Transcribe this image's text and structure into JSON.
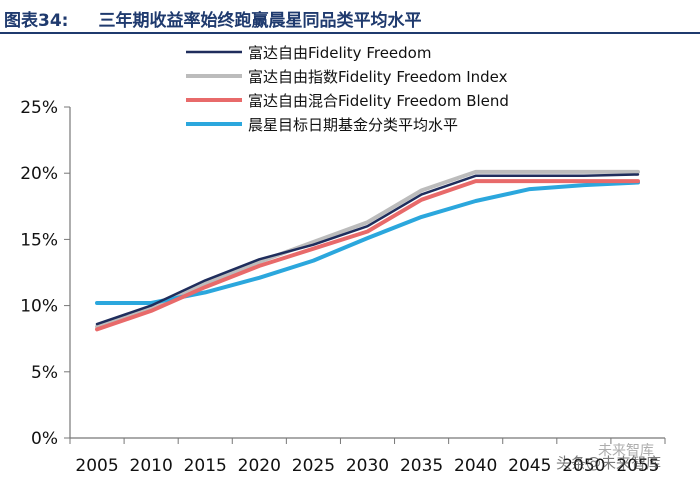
{
  "header": {
    "figure_number": "图表34:",
    "figure_title": "三年期收益率始终跑赢晨星同品类平均水平"
  },
  "watermark": {
    "text": "头条@未来智库",
    "logo_text": "未来智库"
  },
  "chart_data": {
    "type": "line",
    "title": "三年期收益率始终跑赢晨星同品类平均水平",
    "xlabel": "",
    "ylabel": "",
    "categories": [
      "2005",
      "2010",
      "2015",
      "2020",
      "2025",
      "2030",
      "2035",
      "2040",
      "2045",
      "2050",
      "2055"
    ],
    "x_tick_labels": [
      "2005",
      "2010",
      "2015",
      "2020",
      "2025",
      "2030",
      "2035",
      "2040",
      "2045",
      "2050",
      "2055"
    ],
    "y_tick_labels": [
      "0%",
      "5%",
      "10%",
      "15%",
      "20%",
      "25%"
    ],
    "ylim": [
      0,
      25
    ],
    "y_ticks": [
      0,
      5,
      10,
      15,
      20,
      25
    ],
    "grid": false,
    "legend_position": "top-center",
    "series": [
      {
        "name": "富达自由Fidelity Freedom",
        "color": "#1f2d5c",
        "values": [
          8.6,
          10.0,
          11.9,
          13.5,
          14.6,
          16.0,
          18.4,
          19.8,
          19.8,
          19.8,
          19.9
        ]
      },
      {
        "name": "富达自由指数Fidelity Freedom Index",
        "color": "#bcbcbc",
        "values": [
          8.4,
          9.8,
          11.7,
          13.3,
          14.8,
          16.3,
          18.7,
          20.1,
          20.1,
          20.1,
          20.1
        ]
      },
      {
        "name": "富达自由混合Fidelity Freedom Blend",
        "color": "#e86a6a",
        "values": [
          8.2,
          9.6,
          11.4,
          13.0,
          14.3,
          15.6,
          18.0,
          19.4,
          19.4,
          19.4,
          19.4
        ]
      },
      {
        "name": "晨星目标日期基金分类平均水平",
        "color": "#2ba7dd",
        "values": [
          10.2,
          10.2,
          11.0,
          12.1,
          13.4,
          15.1,
          16.7,
          17.9,
          18.8,
          19.1,
          19.3
        ]
      }
    ]
  }
}
